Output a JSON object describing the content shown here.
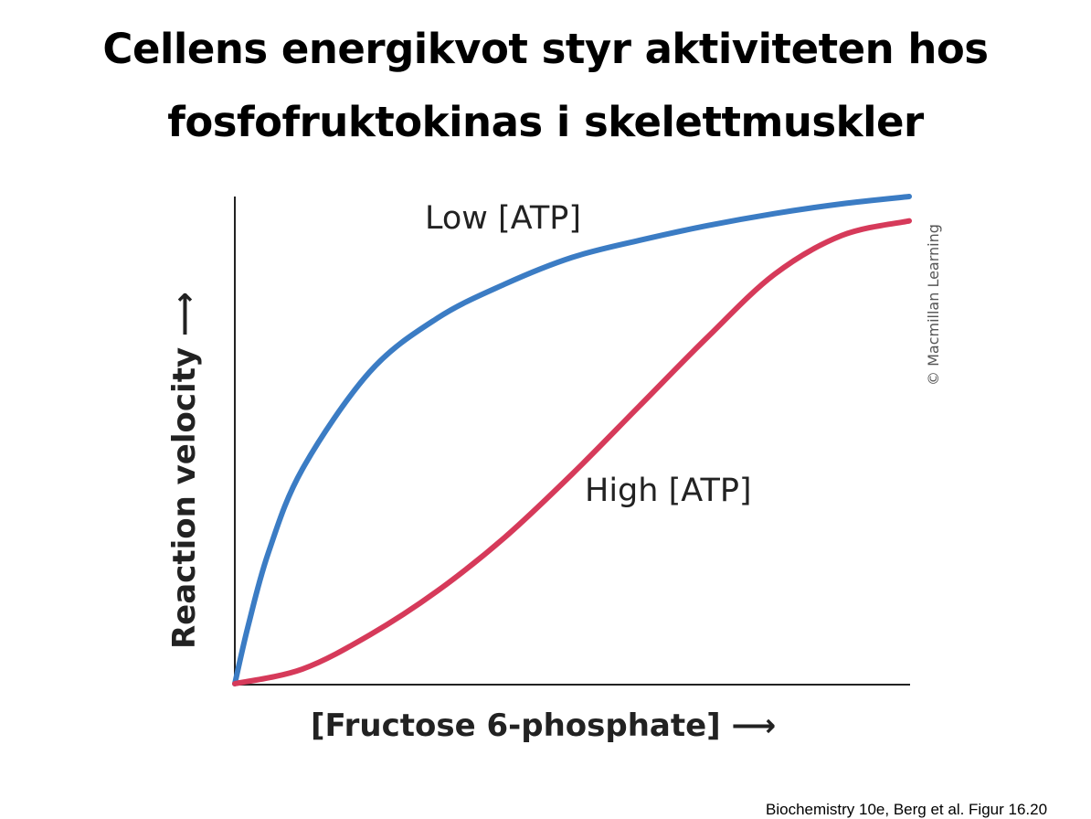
{
  "title": [
    "Cellens energikvot styr aktiviteten hos",
    "fosfofruktokinas i skelettmuskler"
  ],
  "source_note": "Biochemistry 10e, Berg et al. Figur 16.20",
  "chart_data": {
    "type": "line",
    "title": "",
    "xlabel": "[Fructose 6-phosphate] ⟶",
    "ylabel": "Reaction velocity ⟶",
    "xlim": [
      0,
      1
    ],
    "ylim": [
      0,
      1
    ],
    "grid": false,
    "ticks": "none",
    "copyright": "© Macmillan Learning",
    "series": [
      {
        "name": "Low [ATP]",
        "color": "#3b7cc4",
        "x": [
          0,
          0.02,
          0.05,
          0.1,
          0.2,
          0.3,
          0.4,
          0.5,
          0.6,
          0.7,
          0.8,
          0.9,
          1.0
        ],
        "y": [
          0,
          0.12,
          0.27,
          0.44,
          0.64,
          0.75,
          0.82,
          0.875,
          0.91,
          0.94,
          0.965,
          0.985,
          1.0
        ]
      },
      {
        "name": "High [ATP]",
        "color": "#d63a5a",
        "x": [
          0,
          0.1,
          0.2,
          0.3,
          0.4,
          0.5,
          0.6,
          0.7,
          0.8,
          0.9,
          1.0
        ],
        "y": [
          0,
          0.03,
          0.1,
          0.19,
          0.3,
          0.43,
          0.57,
          0.71,
          0.84,
          0.92,
          0.95
        ]
      }
    ]
  }
}
